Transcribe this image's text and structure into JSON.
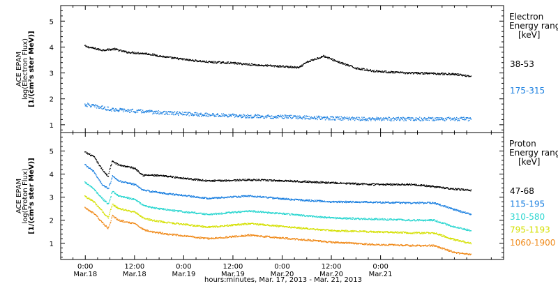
{
  "chart_data": [
    {
      "type": "scatter",
      "ylabel": [
        "ACE EPAM",
        "log(Electron Flux)",
        "[1/(cm²s ster MeV)]"
      ],
      "ylim": [
        0.7,
        5.6
      ],
      "yticks": [
        "1",
        "2",
        "3",
        "4",
        "5"
      ],
      "legend_title": [
        "Electron",
        "Energy ranges",
        "[keV]"
      ],
      "series": [
        {
          "name": "38-53",
          "color": "#000000",
          "x": [
            -0.2,
            0,
            4,
            7,
            10,
            15,
            20,
            25,
            30,
            36,
            42,
            48,
            52,
            54,
            58,
            62,
            66,
            70,
            74,
            78,
            84,
            90,
            94
          ],
          "y": [
            4.05,
            4.02,
            3.88,
            3.92,
            3.8,
            3.74,
            3.6,
            3.5,
            3.42,
            3.38,
            3.3,
            3.25,
            3.2,
            3.42,
            3.65,
            3.4,
            3.18,
            3.08,
            3.03,
            3.0,
            2.98,
            2.95,
            2.87
          ]
        },
        {
          "name": "175-315",
          "color": "#1a7fe0",
          "x": [
            -0.2,
            2,
            6,
            10,
            20,
            30,
            40,
            50,
            60,
            70,
            80,
            90,
            94
          ],
          "y": [
            1.78,
            1.72,
            1.6,
            1.55,
            1.45,
            1.38,
            1.33,
            1.3,
            1.25,
            1.22,
            1.22,
            1.22,
            1.22
          ]
        }
      ]
    },
    {
      "type": "scatter",
      "ylabel": [
        "ACE EPAM",
        "log(Proton Flux)",
        "[1/(cm²s ster MeV)]"
      ],
      "ylim": [
        0.3,
        5.8
      ],
      "yticks": [
        "1",
        "2",
        "3",
        "4",
        "5"
      ],
      "legend_title": [
        "Proton",
        "Energy ranges",
        "[keV]"
      ],
      "series": [
        {
          "name": "47-68",
          "color": "#000000",
          "x": [
            -0.2,
            2,
            4,
            5.5,
            6,
            6.5,
            8,
            12,
            14,
            16,
            20,
            30,
            40,
            50,
            60,
            70,
            80,
            90,
            94
          ],
          "y": [
            4.95,
            4.75,
            4.2,
            3.9,
            4.3,
            4.55,
            4.4,
            4.25,
            3.95,
            3.95,
            3.9,
            3.7,
            3.75,
            3.7,
            3.62,
            3.55,
            3.55,
            3.35,
            3.3
          ]
        },
        {
          "name": "115-195",
          "color": "#1a7fe0",
          "x": [
            -0.2,
            2,
            4,
            5.5,
            6,
            6.5,
            8,
            12,
            14,
            16,
            20,
            30,
            40,
            50,
            60,
            70,
            80,
            85,
            90,
            94
          ],
          "y": [
            4.4,
            4.1,
            3.55,
            3.35,
            3.6,
            3.9,
            3.7,
            3.55,
            3.3,
            3.25,
            3.15,
            2.95,
            3.05,
            2.9,
            2.8,
            2.78,
            2.75,
            2.75,
            2.45,
            2.25
          ]
        },
        {
          "name": "310-580",
          "color": "#2ad6d0",
          "x": [
            -0.2,
            2,
            4,
            5.5,
            6,
            6.5,
            8,
            12,
            14,
            16,
            20,
            30,
            40,
            50,
            60,
            70,
            80,
            85,
            90,
            94
          ],
          "y": [
            3.65,
            3.35,
            2.95,
            2.7,
            2.95,
            3.25,
            3.05,
            2.9,
            2.65,
            2.55,
            2.45,
            2.25,
            2.4,
            2.25,
            2.1,
            2.05,
            2.0,
            2.0,
            1.7,
            1.55
          ]
        },
        {
          "name": "795-1193",
          "color": "#d4e000",
          "x": [
            -0.2,
            2,
            4,
            5.5,
            6,
            6.5,
            8,
            12,
            14,
            16,
            20,
            30,
            40,
            50,
            60,
            70,
            80,
            85,
            90,
            94
          ],
          "y": [
            3.05,
            2.8,
            2.4,
            2.1,
            2.4,
            2.7,
            2.5,
            2.35,
            2.1,
            2.0,
            1.9,
            1.7,
            1.85,
            1.7,
            1.55,
            1.5,
            1.45,
            1.45,
            1.15,
            1.0
          ]
        },
        {
          "name": "1060-1900",
          "color": "#f08a1a",
          "x": [
            -0.2,
            2,
            4,
            5.5,
            6,
            6.5,
            8,
            12,
            14,
            16,
            20,
            30,
            40,
            50,
            60,
            70,
            80,
            85,
            90,
            94
          ],
          "y": [
            2.55,
            2.3,
            1.9,
            1.65,
            1.9,
            2.2,
            2.0,
            1.85,
            1.6,
            1.5,
            1.4,
            1.2,
            1.35,
            1.2,
            1.05,
            0.95,
            0.9,
            0.9,
            0.6,
            0.5
          ]
        }
      ]
    }
  ],
  "x_axis": {
    "range_hours": [
      -6,
      102
    ],
    "ticks": [
      {
        "hour": 0,
        "time": "0:00",
        "date": "Mar.18"
      },
      {
        "hour": 12,
        "time": "12:00",
        "date": "Mar.18"
      },
      {
        "hour": 24,
        "time": "0:00",
        "date": "Mar.19"
      },
      {
        "hour": 36,
        "time": "12:00",
        "date": "Mar.19"
      },
      {
        "hour": 48,
        "time": "0:00",
        "date": "Mar.20"
      },
      {
        "hour": 60,
        "time": "12:00",
        "date": "Mar.20"
      },
      {
        "hour": 72,
        "time": "0:00",
        "date": "Mar.21"
      }
    ],
    "xlabel": "hours:minutes, Mar. 17, 2013 - Mar. 21, 2013"
  }
}
